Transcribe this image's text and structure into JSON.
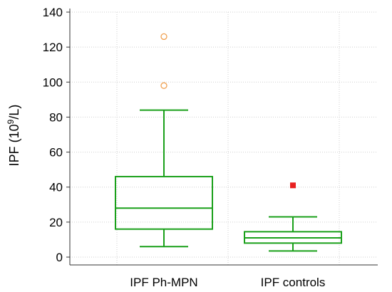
{
  "chart_data": {
    "type": "boxplot",
    "ylabel": "IPF (10 9/L)",
    "ylabel_base": "IPF (10",
    "ylabel_exp": "9",
    "ylabel_unit": "/L)",
    "ylim": [
      0,
      140
    ],
    "yticks": [
      0,
      20,
      40,
      60,
      80,
      100,
      120,
      140
    ],
    "grid": true,
    "categories": [
      "IPF Ph-MPN",
      "IPF controls"
    ],
    "box_color": "#1aa01a",
    "series": [
      {
        "category": "IPF Ph-MPN",
        "whisker_low": 6,
        "q1": 16,
        "median": 28,
        "q3": 46,
        "whisker_high": 84,
        "outliers": [
          {
            "value": 98,
            "marker": "open-circle",
            "color": "#f0a050"
          },
          {
            "value": 126,
            "marker": "open-circle",
            "color": "#f0a050"
          }
        ]
      },
      {
        "category": "IPF controls",
        "whisker_low": 3.5,
        "q1": 8,
        "median": 11,
        "q3": 14.5,
        "whisker_high": 23,
        "outliers": [
          {
            "value": 41,
            "marker": "filled-square",
            "color": "#e82020"
          }
        ]
      }
    ]
  }
}
